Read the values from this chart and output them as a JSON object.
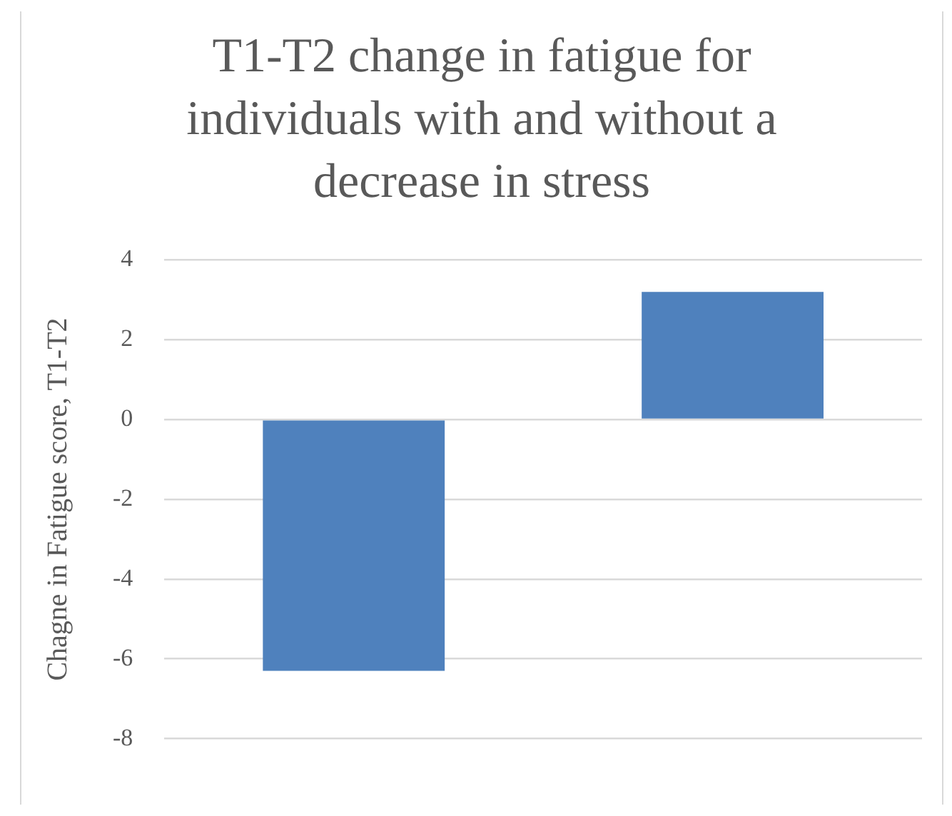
{
  "chart_data": {
    "type": "bar",
    "title": "T1-T2 change in fatigue for individuals with and without a decrease in stress",
    "ylabel": "Chagne in Fatigue score, T1-T2",
    "categories": [
      null,
      null
    ],
    "values": [
      -6.3,
      3.2
    ],
    "color": "#4f81bd",
    "ylim": [
      -8,
      4
    ],
    "yticks": [
      -8,
      -6,
      -4,
      -2,
      0,
      2,
      4
    ],
    "grid": "y"
  }
}
